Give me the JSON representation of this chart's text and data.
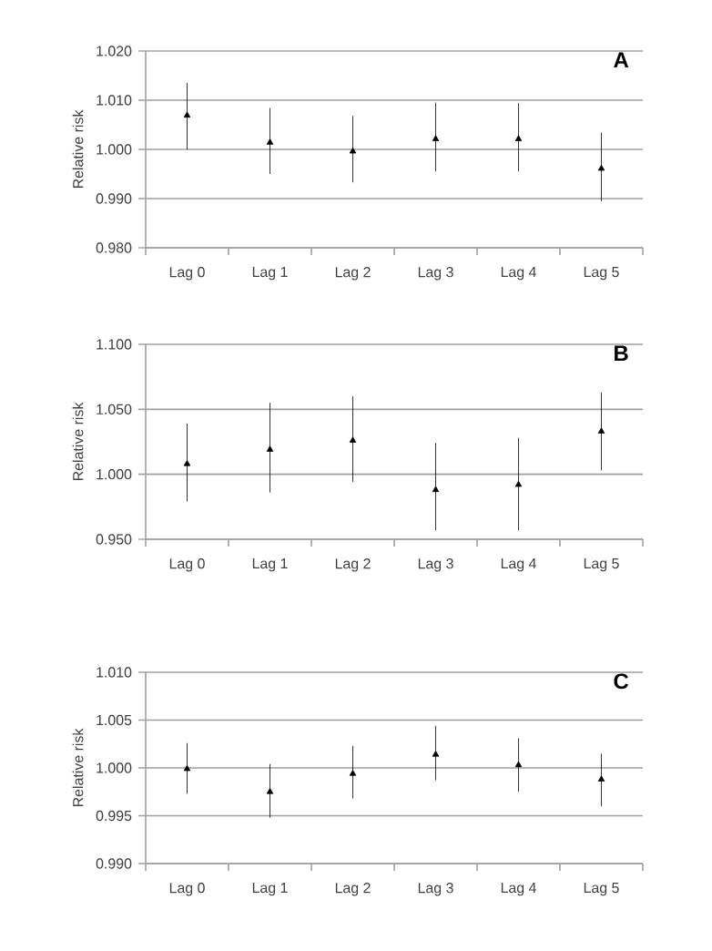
{
  "chart_data": [
    {
      "type": "scatter",
      "title": "A",
      "ylabel": "Relative risk",
      "categories": [
        "Lag 0",
        "Lag 1",
        "Lag 2",
        "Lag 3",
        "Lag 4",
        "Lag 5"
      ],
      "marker": "triangle",
      "grid": "y",
      "series": [
        {
          "color": "#000000",
          "values": [
            1.0069,
            1.0014,
            0.9996,
            1.0021,
            1.0021,
            0.9961
          ],
          "errors": [
            [
              1.0,
              1.0135
            ],
            [
              0.995,
              1.0084
            ],
            [
              0.9933,
              1.0068
            ],
            [
              0.9955,
              1.0095
            ],
            [
              0.9955,
              1.0094
            ],
            [
              0.9895,
              1.0034
            ]
          ]
        }
      ],
      "ylim": [
        0.98,
        1.02
      ],
      "yticks": [
        {
          "value": 0.98,
          "label": "0.980"
        },
        {
          "value": 0.99,
          "label": "0.990"
        },
        {
          "value": 1.0,
          "label": "1.000"
        },
        {
          "value": 1.01,
          "label": "1.010"
        },
        {
          "value": 1.02,
          "label": "1.020"
        }
      ]
    },
    {
      "type": "scatter",
      "title": "B",
      "ylabel": "Relative risk",
      "categories": [
        "Lag 0",
        "Lag 1",
        "Lag 2",
        "Lag 3",
        "Lag 4",
        "Lag 5"
      ],
      "marker": "triangle",
      "grid": "y",
      "series": [
        {
          "color": "#000000",
          "values": [
            1.008,
            1.019,
            1.026,
            0.988,
            0.992,
            1.033
          ],
          "errors": [
            [
              0.979,
              1.039
            ],
            [
              0.986,
              1.055
            ],
            [
              0.994,
              1.06
            ],
            [
              0.957,
              1.024
            ],
            [
              0.957,
              1.028
            ],
            [
              1.003,
              1.063
            ]
          ]
        }
      ],
      "ylim": [
        0.95,
        1.1
      ],
      "yticks": [
        {
          "value": 0.95,
          "label": "0.950"
        },
        {
          "value": 1.0,
          "label": "1.000"
        },
        {
          "value": 1.05,
          "label": "1.050"
        },
        {
          "value": 1.1,
          "label": "1.100"
        }
      ]
    },
    {
      "type": "scatter",
      "title": "C",
      "ylabel": "Relative risk",
      "categories": [
        "Lag 0",
        "Lag 1",
        "Lag 2",
        "Lag 3",
        "Lag 4",
        "Lag 5"
      ],
      "marker": "triangle",
      "grid": "y",
      "series": [
        {
          "color": "#000000",
          "values": [
            0.9999,
            0.9975,
            0.9994,
            1.0014,
            1.0003,
            0.9988
          ],
          "errors": [
            [
              0.9973,
              1.0026
            ],
            [
              0.9948,
              1.0004
            ],
            [
              0.9968,
              1.0023
            ],
            [
              0.9987,
              1.0044
            ],
            [
              0.9975,
              1.0031
            ],
            [
              0.996,
              1.0015
            ]
          ]
        }
      ],
      "ylim": [
        0.99,
        1.01
      ],
      "yticks": [
        {
          "value": 0.99,
          "label": "0.990"
        },
        {
          "value": 0.995,
          "label": "0.995"
        },
        {
          "value": 1.0,
          "label": "1.000"
        },
        {
          "value": 1.005,
          "label": "1.005"
        },
        {
          "value": 1.01,
          "label": "1.010"
        }
      ]
    }
  ]
}
